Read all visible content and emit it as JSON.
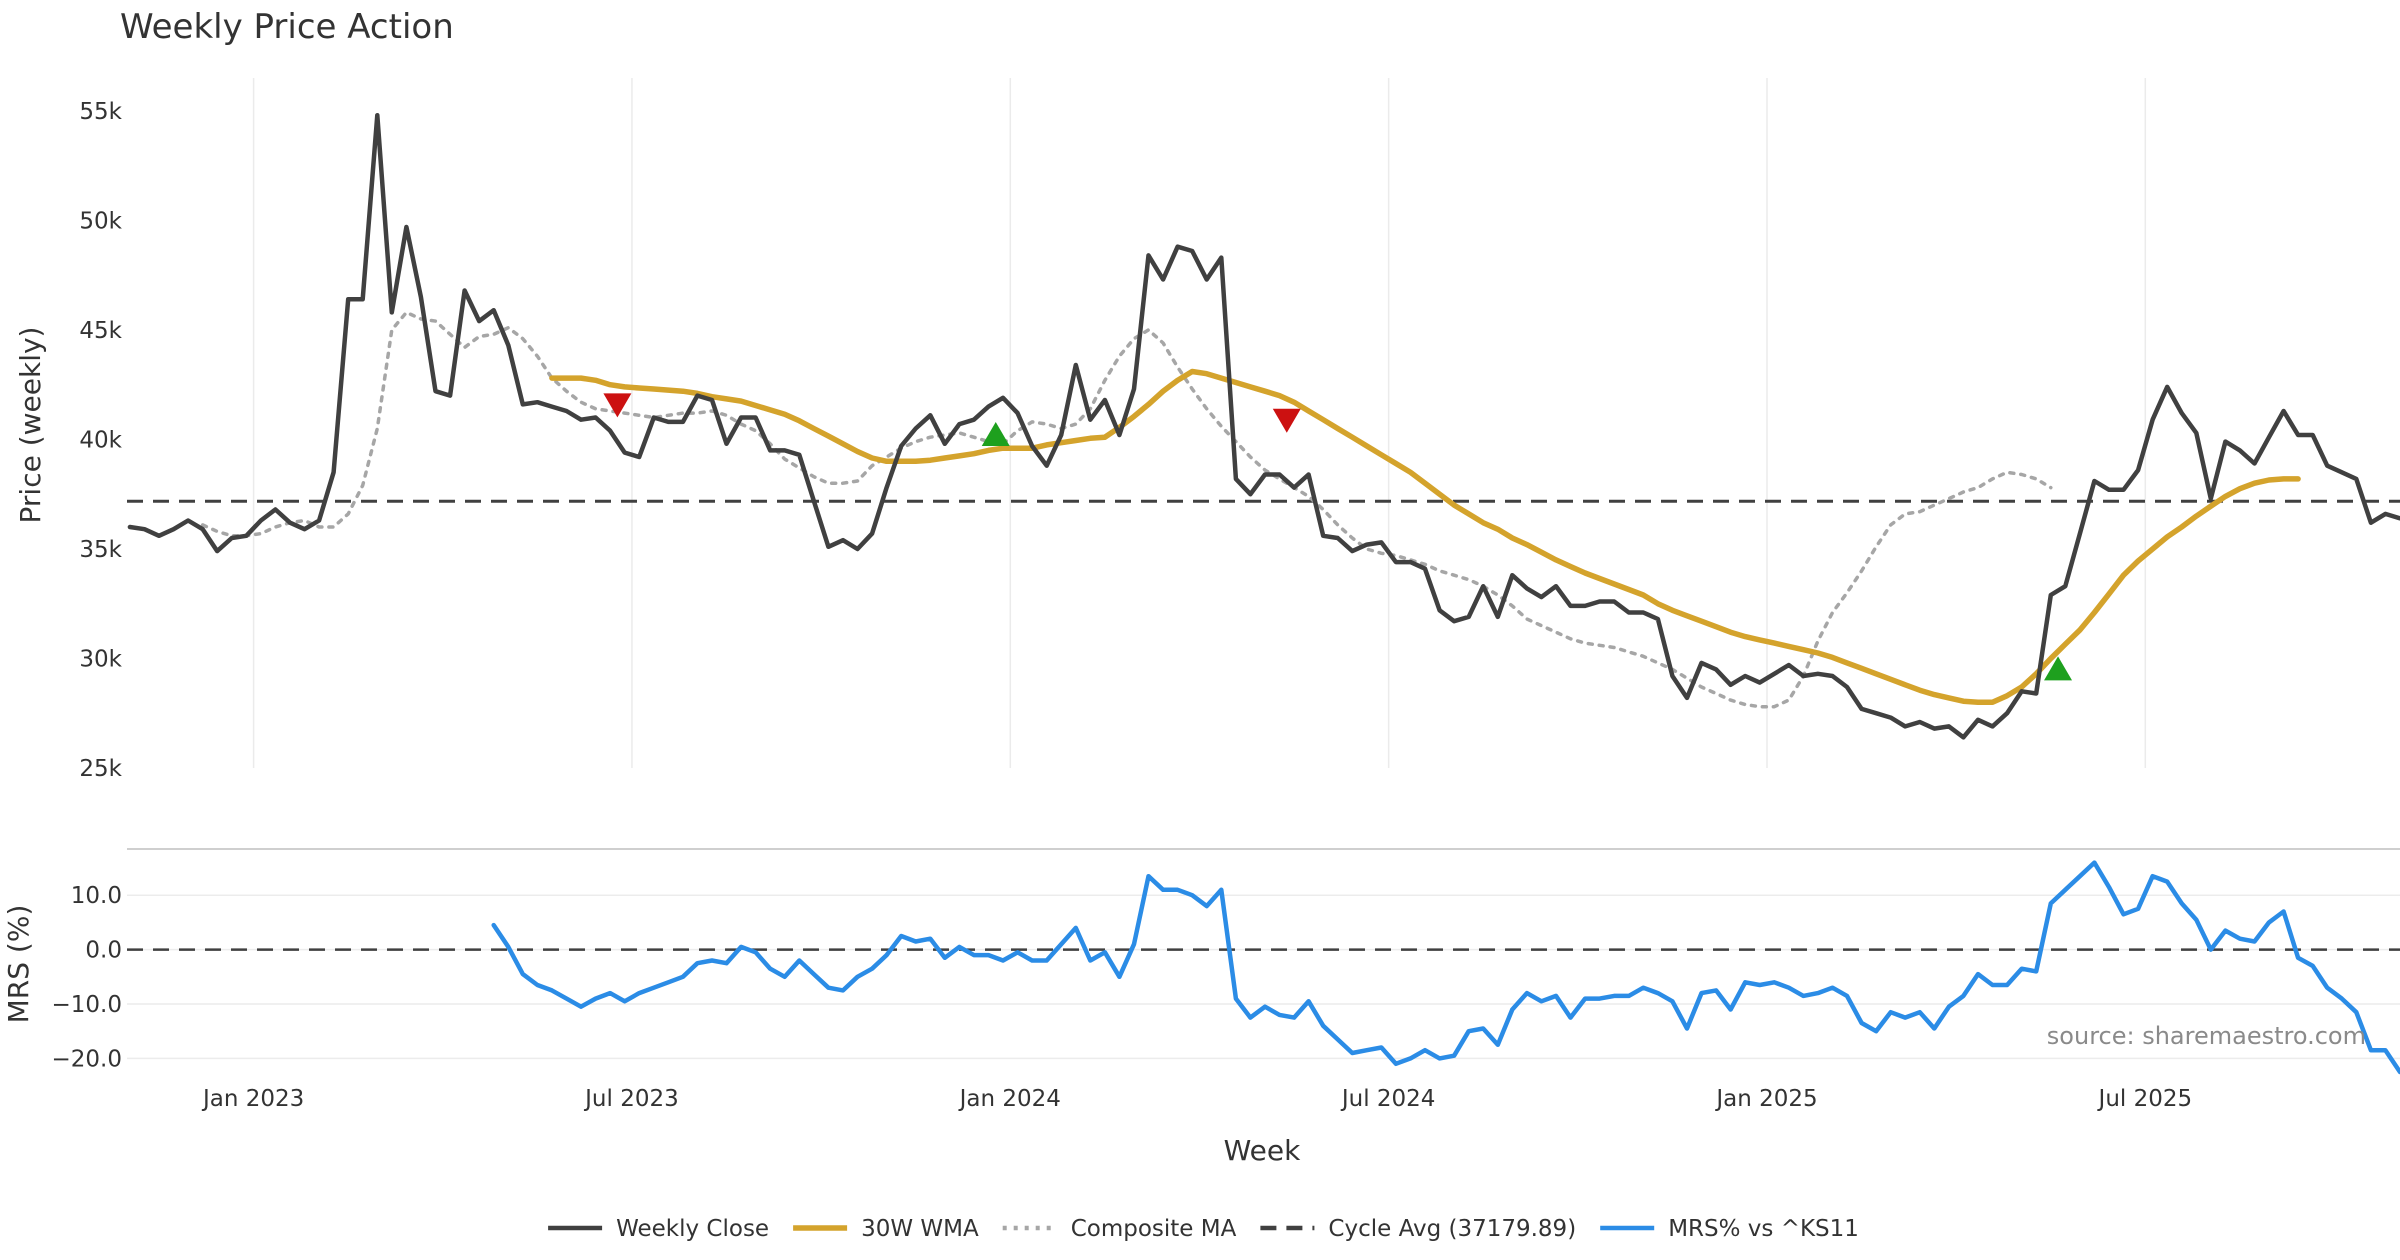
{
  "chart_data": {
    "type": "line",
    "title": "Weekly Price Action",
    "xlabel": "Week",
    "x_ticks": [
      "Jan 2023",
      "Jul 2023",
      "Jan 2024",
      "Jul 2024",
      "Jan 2025",
      "Jul 2025"
    ],
    "x_tick_weeks": [
      0,
      26,
      52,
      78,
      104,
      130
    ],
    "week_range": [
      -8.7,
      147.5
    ],
    "source_text": "source: sharemaestro.com",
    "legend_position": "bottom-center",
    "price_panel": {
      "ylabel": "Price (weekly)",
      "ylim": [
        25000,
        56500
      ],
      "y_ticks": [
        25000,
        30000,
        35000,
        40000,
        45000,
        50000,
        55000
      ],
      "y_tick_labels": [
        "25k",
        "30k",
        "35k",
        "40k",
        "45k",
        "50k",
        "55k"
      ],
      "series": [
        {
          "name": "Weekly Close",
          "color": "#404040",
          "style": "solid",
          "start_week": -8.5,
          "step_weeks": 1,
          "values": [
            36000,
            35900,
            35600,
            35900,
            36300,
            35900,
            34900,
            35500,
            35600,
            36300,
            36800,
            36200,
            35900,
            36300,
            38500,
            46400,
            46400,
            54800,
            45800,
            49700,
            46500,
            42200,
            42000,
            46800,
            45400,
            45900,
            44300,
            41600,
            41700,
            41500,
            41300,
            40900,
            41000,
            40400,
            39400,
            39200,
            41000,
            40800,
            40800,
            42000,
            41800,
            39800,
            41000,
            41000,
            39500,
            39500,
            39300,
            37200,
            35100,
            35400,
            35000,
            35700,
            37800,
            39700,
            40500,
            41100,
            39800,
            40700,
            40900,
            41500,
            41900,
            41200,
            39700,
            38800,
            40200,
            43400,
            40900,
            41800,
            40200,
            42300,
            48400,
            47300,
            48800,
            48600,
            47300,
            48300,
            38200,
            37500,
            38400,
            38400,
            37800,
            38400,
            35600,
            35500,
            34900,
            35200,
            35300,
            34400,
            34400,
            34100,
            32200,
            31700,
            31900,
            33300,
            31900,
            33800,
            33200,
            32800,
            33300,
            32400,
            32400,
            32600,
            32600,
            32100,
            32100,
            31800,
            29200,
            28200,
            29800,
            29500,
            28800,
            29200,
            28900,
            29300,
            29700,
            29200,
            29300,
            29200,
            28700,
            27700,
            27500,
            27300,
            26900,
            27100,
            26800,
            26900,
            26400,
            27200,
            26900,
            27500,
            28500,
            28400,
            32900,
            33300,
            35700,
            38100,
            37700,
            37700,
            38600,
            40900,
            42400,
            41200,
            40300,
            37300,
            39900,
            39500,
            38900,
            40100,
            41300,
            40200,
            40200,
            38800,
            38500,
            38200,
            36200,
            36600,
            36400
          ]
        },
        {
          "name": "30W WMA",
          "color": "#d4a32c",
          "style": "solid",
          "start_week": 20.5,
          "step_weeks": 1,
          "values": [
            42800,
            42800,
            42800,
            42700,
            42500,
            42400,
            42350,
            42300,
            42250,
            42200,
            42100,
            41950,
            41850,
            41750,
            41550,
            41350,
            41150,
            40850,
            40500,
            40150,
            39800,
            39450,
            39150,
            39000,
            39000,
            39000,
            39050,
            39150,
            39250,
            39350,
            39500,
            39600,
            39600,
            39600,
            39750,
            39850,
            39950,
            40050,
            40100,
            40550,
            41050,
            41600,
            42200,
            42700,
            43100,
            43000,
            42800,
            42600,
            42400,
            42200,
            42000,
            41700,
            41300,
            40900,
            40500,
            40100,
            39700,
            39300,
            38900,
            38500,
            38000,
            37500,
            37000,
            36600,
            36200,
            35900,
            35500,
            35200,
            34850,
            34500,
            34200,
            33900,
            33650,
            33400,
            33150,
            32900,
            32500,
            32200,
            31950,
            31700,
            31450,
            31200,
            31000,
            30850,
            30700,
            30550,
            30400,
            30250,
            30050,
            29800,
            29550,
            29300,
            29050,
            28800,
            28550,
            28350,
            28200,
            28050,
            28000,
            28000,
            28300,
            28700,
            29300,
            30000,
            30650,
            31300,
            32100,
            32950,
            33800,
            34450,
            35000,
            35550,
            36000,
            36500,
            36950,
            37400,
            37750,
            38000,
            38150,
            38200,
            38200
          ]
        },
        {
          "name": "Composite MA",
          "color": "#a6a6a6",
          "style": "dotted",
          "start_week": -3.5,
          "step_weeks": 1,
          "values": [
            36100,
            35800,
            35600,
            35600,
            35700,
            36000,
            36200,
            36300,
            36000,
            36000,
            36600,
            37900,
            40500,
            45000,
            45800,
            45500,
            45400,
            44800,
            44200,
            44700,
            44800,
            45100,
            44600,
            43800,
            42800,
            42200,
            41700,
            41400,
            41300,
            41200,
            41100,
            41000,
            41100,
            41200,
            41200,
            41300,
            41100,
            40700,
            40400,
            39800,
            39100,
            38700,
            38300,
            38000,
            38000,
            38100,
            38800,
            39200,
            39600,
            39900,
            40100,
            40200,
            40300,
            40100,
            39900,
            39800,
            40400,
            40800,
            40700,
            40500,
            40700,
            41400,
            42700,
            43800,
            44600,
            45000,
            44400,
            43300,
            42300,
            41400,
            40600,
            39900,
            39200,
            38600,
            38200,
            37800,
            37400,
            36800,
            36100,
            35500,
            35000,
            34800,
            34700,
            34500,
            34300,
            34000,
            33800,
            33600,
            33300,
            32900,
            32400,
            31800,
            31500,
            31200,
            30900,
            30700,
            30600,
            30500,
            30300,
            30100,
            29800,
            29500,
            29100,
            28700,
            28400,
            28100,
            27900,
            27800,
            27800,
            28100,
            29200,
            30800,
            32100,
            33000,
            34000,
            35100,
            36100,
            36600,
            36700,
            37000,
            37300,
            37600,
            37800,
            38200,
            38500,
            38400,
            38200,
            37800
          ]
        },
        {
          "name": "Cycle Avg (37179.89)",
          "color": "#404040",
          "style": "dashed",
          "value": 37179.89
        }
      ],
      "markers": [
        {
          "type": "sell",
          "week": 25,
          "value": 41600,
          "color": "#cc1111"
        },
        {
          "type": "buy",
          "week": 51,
          "value": 40200,
          "color": "#1ea01e"
        },
        {
          "type": "sell",
          "week": 71,
          "value": 40900,
          "color": "#cc1111"
        },
        {
          "type": "buy",
          "week": 124,
          "value": 29500,
          "color": "#1ea01e"
        }
      ]
    },
    "mrs_panel": {
      "ylabel": "MRS (%)",
      "ylim": [
        -22.5,
        18.5
      ],
      "y_ticks": [
        -20,
        -10,
        0,
        10
      ],
      "y_tick_labels": [
        "−20.0",
        "−10.0",
        "0.0",
        "10.0"
      ],
      "zero_line": 0,
      "series": [
        {
          "name": "MRS% vs ^KS11",
          "color": "#2b8ce6",
          "style": "solid",
          "start_week": 16.5,
          "step_weeks": 1,
          "values": [
            4.5,
            0.5,
            -4.5,
            -6.5,
            -7.5,
            -9.0,
            -10.5,
            -9.0,
            -8.0,
            -9.5,
            -8.0,
            -7.0,
            -6.0,
            -5.0,
            -2.5,
            -2.0,
            -2.5,
            0.5,
            -0.5,
            -3.5,
            -5.0,
            -2.0,
            -4.5,
            -7.0,
            -7.5,
            -5.0,
            -3.5,
            -1.0,
            2.5,
            1.5,
            2.0,
            -1.5,
            0.5,
            -1.0,
            -1.0,
            -2.0,
            -0.5,
            -2.0,
            -2.0,
            1.0,
            4.0,
            -2.0,
            -0.5,
            -5.0,
            1.0,
            13.5,
            11.0,
            11.0,
            10.0,
            8.0,
            11.0,
            -9.0,
            -12.5,
            -10.5,
            -12.0,
            -12.5,
            -9.5,
            -14.0,
            -16.5,
            -19.0,
            -18.5,
            -18.0,
            -21.0,
            -20.0,
            -18.5,
            -20.0,
            -19.5,
            -15.0,
            -14.5,
            -17.5,
            -11.0,
            -8.0,
            -9.5,
            -8.5,
            -12.5,
            -9.0,
            -9.0,
            -8.5,
            -8.5,
            -7.0,
            -8.0,
            -9.5,
            -14.5,
            -8.0,
            -7.5,
            -11.0,
            -6.0,
            -6.5,
            -6.0,
            -7.0,
            -8.5,
            -8.0,
            -7.0,
            -8.5,
            -13.5,
            -15.0,
            -11.5,
            -12.5,
            -11.5,
            -14.5,
            -10.5,
            -8.5,
            -4.5,
            -6.5,
            -6.5,
            -3.5,
            -4.0,
            8.5,
            11.0,
            13.5,
            16.0,
            11.5,
            6.5,
            7.5,
            13.5,
            12.5,
            8.5,
            5.5,
            0.0,
            3.5,
            2.0,
            1.5,
            5.0,
            7.0,
            -1.5,
            -3.0,
            -7.0,
            -9.0,
            -11.5,
            -18.5,
            -18.5,
            -22.5
          ]
        }
      ]
    }
  }
}
